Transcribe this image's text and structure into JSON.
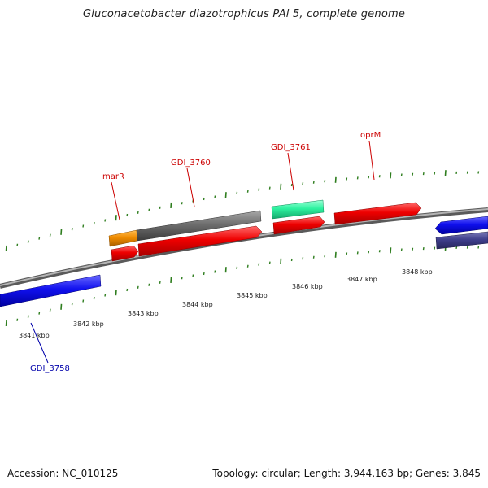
{
  "title": "Gluconacetobacter diazotrophicus PAl 5, complete genome",
  "footer": {
    "accession": "Accession: NC_010125",
    "summary": "Topology: circular; Length: 3,944,163 bp; Genes: 3,845"
  },
  "ruler": {
    "labels": [
      "3841 kbp",
      "3842 kbp",
      "3843 kbp",
      "3844 kbp",
      "3845 kbp",
      "3846 kbp",
      "3847 kbp",
      "3848 kbp"
    ]
  },
  "gene_labels": [
    {
      "id": "marR",
      "text": "marR",
      "color": "#cc0000"
    },
    {
      "id": "GDI_3760",
      "text": "GDI_3760",
      "color": "#cc0000"
    },
    {
      "id": "GDI_3761",
      "text": "GDI_3761",
      "color": "#cc0000"
    },
    {
      "id": "oprM",
      "text": "oprM",
      "color": "#cc0000"
    },
    {
      "id": "GDI_3758",
      "text": "GDI_3758",
      "color": "#0000aa"
    }
  ],
  "colors": {
    "backbone": "#8a8a8a",
    "tick": "#2e7d1e",
    "red": "#ee0000",
    "gray": "#6e6e6e",
    "orange": "#f08c00",
    "teal": "#2ef2a0",
    "blue": "#1010ee",
    "slate": "#3f3f8c"
  }
}
